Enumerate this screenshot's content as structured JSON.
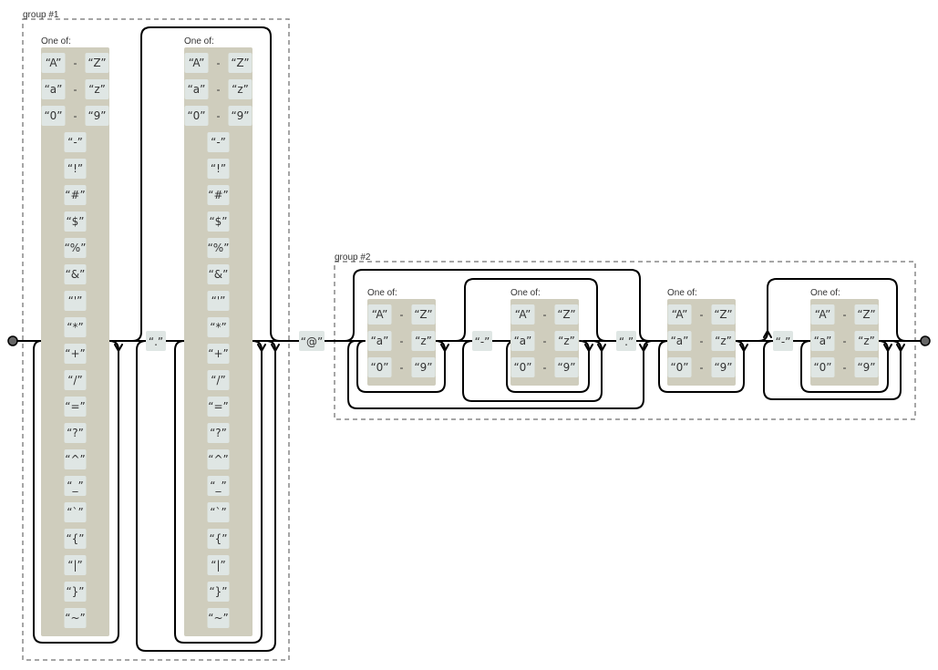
{
  "groups": {
    "g1": "group #1",
    "g2": "group #2"
  },
  "one_of_label": "One of:",
  "ranges": {
    "upper": {
      "from": "“A”",
      "to": "“Z”"
    },
    "lower": {
      "from": "“a”",
      "to": "“z”"
    },
    "digit": {
      "from": "“0”",
      "to": "“9”"
    },
    "dash": "-"
  },
  "specials": [
    "“-”",
    "“!”",
    "“#”",
    "“$”",
    "“%”",
    "“&”",
    "“'”",
    "“*”",
    "“+”",
    "“/”",
    "“=”",
    "“?”",
    "“^”",
    "“_”",
    "“`”",
    "“{”",
    "“|”",
    "“}”",
    "“~”"
  ],
  "literals": {
    "dot": "“.”",
    "at": "“@”",
    "hyphen": "“-”"
  },
  "colors": {
    "one_of_background": "#cfcdbd",
    "literal_background": "#dfe6e4",
    "group_border": "#888888"
  }
}
